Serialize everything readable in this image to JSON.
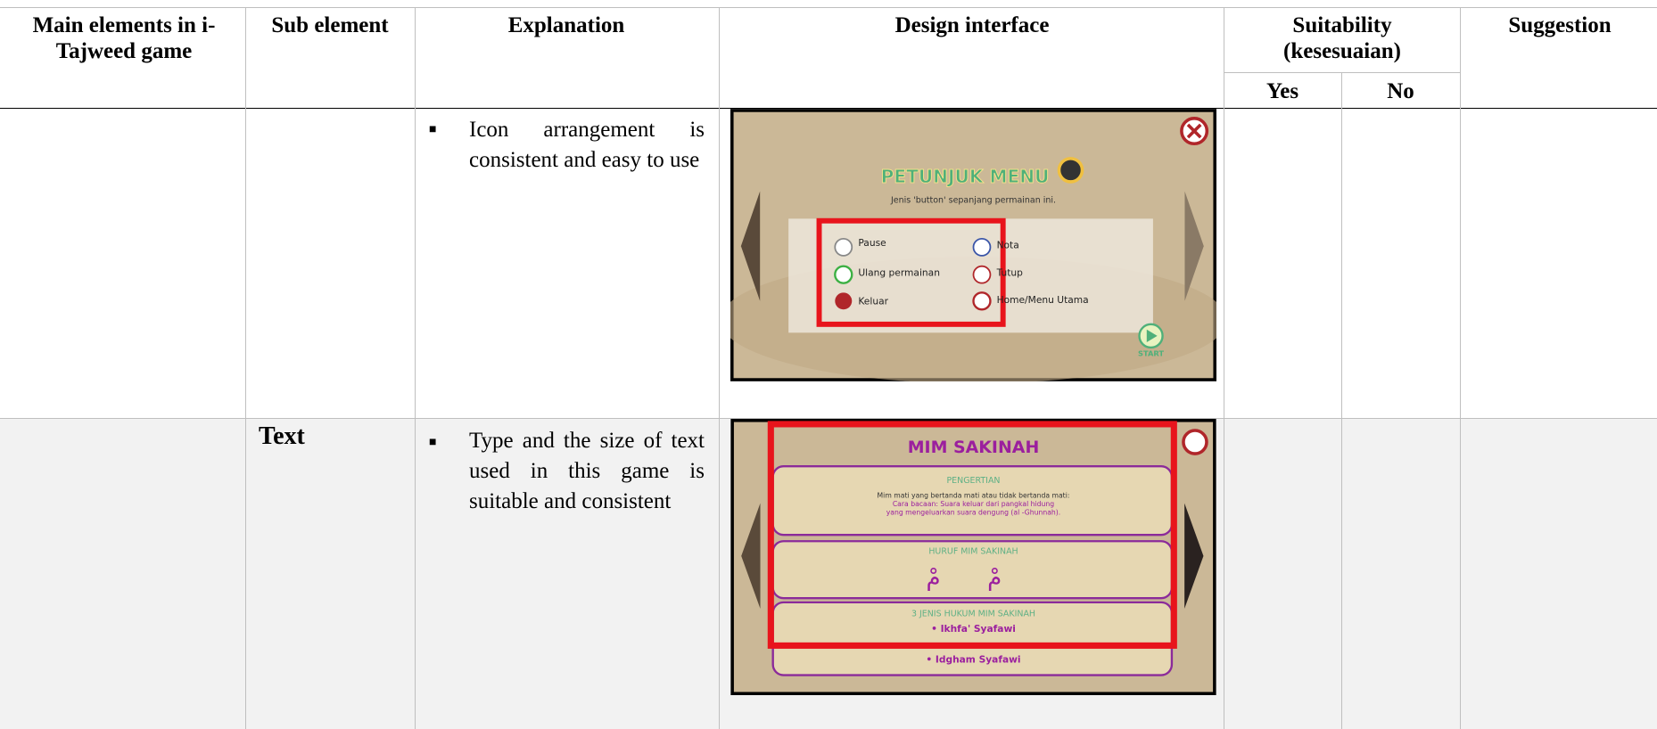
{
  "table": {
    "header": {
      "main_elements": "Main elements in i-Tajweed game",
      "sub_element": "Sub element",
      "explanation": "Explanation",
      "design_interface": "Design interface",
      "suitability": "Suitability (kesesuaian)",
      "yes": "Yes",
      "no": "No",
      "suggestion": "Suggestion"
    },
    "rows": [
      {
        "explanation": "Icon arrangement is consistent and easy to use",
        "screen": {
          "title": "PETUNJUK MENU",
          "subtitle": "Jenis 'button' sepanjang permainan ini.",
          "buttons": [
            "Pause",
            "Nota",
            "Ulang permainan",
            "Tutup",
            "Keluar",
            "Home/Menu Utama"
          ],
          "start": "START"
        }
      },
      {
        "sub_element": "Text",
        "explanation": "Type and the size of text used in this game is suitable and consistent",
        "screen": {
          "title": "MIM SAKINAH",
          "sections": [
            {
              "heading": "PENGERTIAN",
              "lines": [
                "Mim mati yang bertanda mati atau tidak bertanda mati:",
                "Cara bacaan: Suara keluar dari pangkal hidung",
                "yang mengeluarkan suara dengung (al -Ghunnah)."
              ]
            },
            {
              "heading": "HURUF MIM SAKINAH",
              "lines": [
                "مْ",
                "مْ"
              ]
            },
            {
              "heading": "3 JENIS HUKUM MIM SAKINAH",
              "lines": [
                "• Ikhfa' Syafawi",
                "• Idgham Syafawi"
              ]
            }
          ]
        }
      }
    ]
  }
}
